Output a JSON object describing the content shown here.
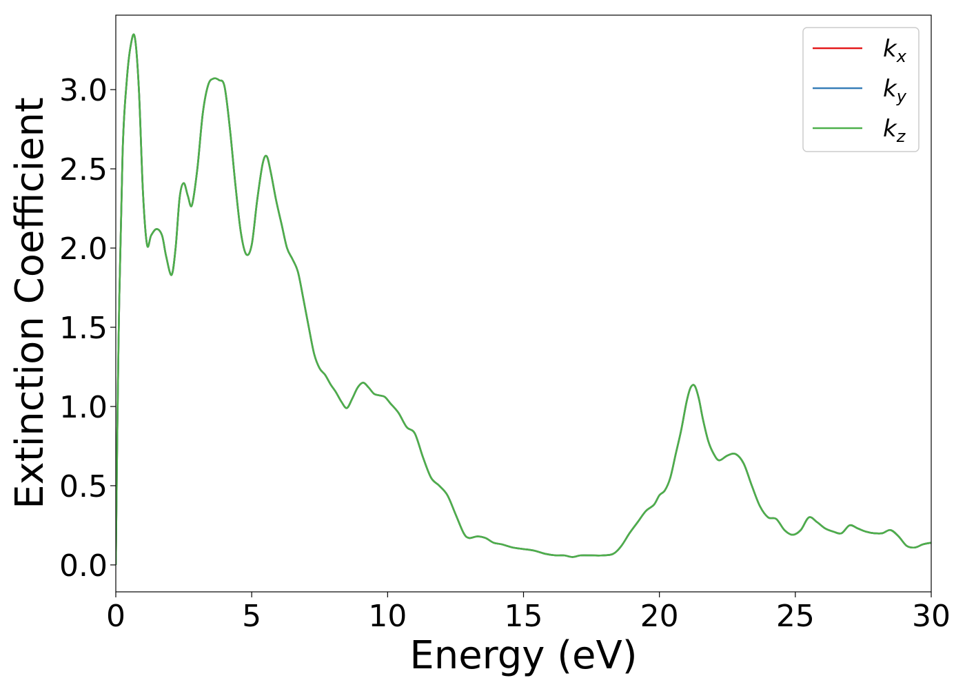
{
  "chart_data": {
    "type": "line",
    "xlabel": "Energy (eV)",
    "ylabel": "Extinction Coefficient",
    "xlim": [
      0,
      30
    ],
    "ylim": [
      -0.17,
      3.47
    ],
    "xticks": [
      0,
      5,
      10,
      15,
      20,
      25,
      30
    ],
    "xtick_labels": [
      "0",
      "5",
      "10",
      "15",
      "20",
      "25",
      "30"
    ],
    "yticks": [
      0.0,
      0.5,
      1.0,
      1.5,
      2.0,
      2.5,
      3.0
    ],
    "ytick_labels": [
      "0.0",
      "0.5",
      "1.0",
      "1.5",
      "2.0",
      "2.5",
      "3.0"
    ],
    "grid": false,
    "legend_position": "top-right",
    "series": [
      {
        "name": "k",
        "subscript": "x",
        "color": "#e41a1c"
      },
      {
        "name": "k",
        "subscript": "y",
        "color": "#377eb8"
      },
      {
        "name": "k",
        "subscript": "z",
        "color": "#4daf4a"
      }
    ],
    "x": [
      0,
      0.1,
      0.25,
      0.4,
      0.55,
      0.7,
      0.85,
      1.0,
      1.15,
      1.3,
      1.5,
      1.7,
      1.85,
      2.05,
      2.2,
      2.35,
      2.5,
      2.65,
      2.8,
      3.0,
      3.2,
      3.4,
      3.6,
      3.8,
      4.0,
      4.2,
      4.4,
      4.6,
      4.8,
      5.0,
      5.2,
      5.4,
      5.55,
      5.7,
      5.9,
      6.1,
      6.3,
      6.5,
      6.7,
      6.9,
      7.1,
      7.3,
      7.5,
      7.7,
      7.9,
      8.1,
      8.3,
      8.5,
      8.7,
      8.9,
      9.1,
      9.3,
      9.5,
      9.7,
      9.9,
      10.1,
      10.4,
      10.7,
      11.0,
      11.3,
      11.6,
      11.9,
      12.2,
      12.5,
      12.8,
      13.0,
      13.3,
      13.6,
      13.9,
      14.2,
      14.6,
      15.0,
      15.4,
      15.8,
      16.2,
      16.5,
      16.8,
      17.1,
      17.5,
      17.9,
      18.3,
      18.6,
      18.9,
      19.2,
      19.5,
      19.8,
      20.0,
      20.2,
      20.4,
      20.6,
      20.8,
      21.0,
      21.15,
      21.3,
      21.45,
      21.6,
      21.8,
      22.0,
      22.2,
      22.5,
      22.8,
      23.1,
      23.4,
      23.7,
      24.0,
      24.3,
      24.6,
      24.9,
      25.2,
      25.5,
      25.8,
      26.1,
      26.4,
      26.7,
      27.0,
      27.3,
      27.6,
      27.9,
      28.2,
      28.5,
      28.8,
      29.1,
      29.4,
      29.7,
      30.0
    ],
    "values": [
      0.0,
      1.4,
      2.6,
      3.05,
      3.28,
      3.33,
      3.0,
      2.35,
      2.02,
      2.08,
      2.12,
      2.08,
      1.95,
      1.83,
      2.0,
      2.32,
      2.41,
      2.33,
      2.27,
      2.5,
      2.85,
      3.03,
      3.07,
      3.06,
      3.02,
      2.75,
      2.4,
      2.1,
      1.96,
      2.02,
      2.3,
      2.53,
      2.58,
      2.48,
      2.3,
      2.15,
      2.0,
      1.93,
      1.85,
      1.68,
      1.5,
      1.33,
      1.24,
      1.2,
      1.14,
      1.09,
      1.03,
      0.99,
      1.05,
      1.12,
      1.15,
      1.12,
      1.08,
      1.07,
      1.06,
      1.02,
      0.96,
      0.87,
      0.83,
      0.68,
      0.55,
      0.5,
      0.44,
      0.32,
      0.2,
      0.17,
      0.18,
      0.17,
      0.14,
      0.13,
      0.11,
      0.1,
      0.09,
      0.07,
      0.06,
      0.06,
      0.05,
      0.06,
      0.06,
      0.06,
      0.07,
      0.12,
      0.2,
      0.27,
      0.34,
      0.38,
      0.44,
      0.47,
      0.55,
      0.7,
      0.85,
      1.03,
      1.12,
      1.13,
      1.05,
      0.92,
      0.78,
      0.7,
      0.66,
      0.69,
      0.7,
      0.64,
      0.5,
      0.37,
      0.3,
      0.29,
      0.22,
      0.19,
      0.22,
      0.3,
      0.27,
      0.23,
      0.21,
      0.2,
      0.25,
      0.23,
      0.21,
      0.2,
      0.2,
      0.22,
      0.18,
      0.12,
      0.11,
      0.13,
      0.14
    ]
  }
}
